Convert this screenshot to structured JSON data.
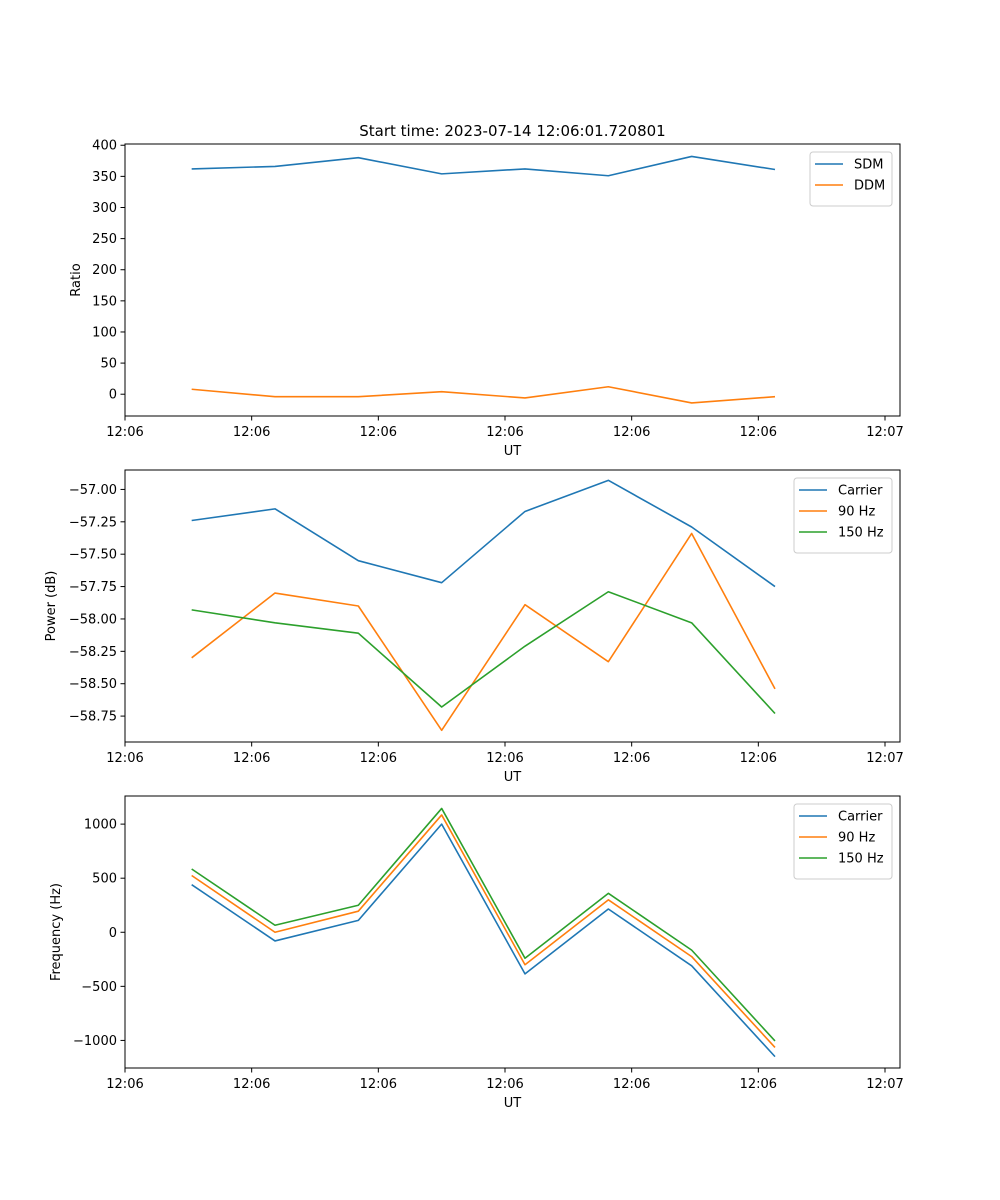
{
  "figure_title": "Start time: 2023-07-14 12:06:01.720801",
  "chart_data": [
    {
      "type": "line",
      "title": "Start time: 2023-07-14 12:06:01.720801",
      "xlabel": "UT",
      "ylabel": "Ratio",
      "x": [
        1,
        2,
        3,
        4,
        5,
        6,
        7,
        8
      ],
      "xlim": [
        0.2,
        9.5
      ],
      "x_ticks": [
        0.2,
        1.72,
        3.24,
        4.76,
        6.28,
        7.8,
        9.32
      ],
      "x_tick_labels": [
        "12:06",
        "12:06",
        "12:06",
        "12:06",
        "12:06",
        "12:06",
        "12:07"
      ],
      "ylim": [
        -35,
        402
      ],
      "y_ticks": [
        0,
        50,
        100,
        150,
        200,
        250,
        300,
        350,
        400
      ],
      "y_tick_labels": [
        "0",
        "50",
        "100",
        "150",
        "200",
        "250",
        "300",
        "350",
        "400"
      ],
      "legend_position": "upper-right",
      "series": [
        {
          "name": "SDM",
          "color": "#1f77b4",
          "values": [
            362,
            366,
            380,
            354,
            362,
            351,
            382,
            361
          ]
        },
        {
          "name": "DDM",
          "color": "#ff7f0e",
          "values": [
            8,
            -4,
            -4,
            4,
            -6,
            12,
            -14,
            -4
          ]
        }
      ]
    },
    {
      "type": "line",
      "title": "",
      "xlabel": "UT",
      "ylabel": "Power (dB)",
      "x": [
        1,
        2,
        3,
        4,
        5,
        6,
        7,
        8
      ],
      "xlim": [
        0.2,
        9.5
      ],
      "x_ticks": [
        0.2,
        1.72,
        3.24,
        4.76,
        6.28,
        7.8,
        9.32
      ],
      "x_tick_labels": [
        "12:06",
        "12:06",
        "12:06",
        "12:06",
        "12:06",
        "12:06",
        "12:07"
      ],
      "ylim": [
        -58.95,
        -56.85
      ],
      "y_ticks": [
        -58.75,
        -58.5,
        -58.25,
        -58.0,
        -57.75,
        -57.5,
        -57.25,
        -57.0
      ],
      "y_tick_labels": [
        "−58.75",
        "−58.50",
        "−58.25",
        "−58.00",
        "−57.75",
        "−57.50",
        "−57.25",
        "−57.00"
      ],
      "legend_position": "upper-right",
      "series": [
        {
          "name": "Carrier",
          "color": "#1f77b4",
          "values": [
            -57.24,
            -57.15,
            -57.55,
            -57.72,
            -57.17,
            -56.93,
            -57.29,
            -57.75
          ]
        },
        {
          "name": "90 Hz",
          "color": "#ff7f0e",
          "values": [
            -58.3,
            -57.8,
            -57.9,
            -58.86,
            -57.89,
            -58.33,
            -57.34,
            -58.54
          ]
        },
        {
          "name": "150 Hz",
          "color": "#2ca02c",
          "values": [
            -57.93,
            -58.03,
            -58.11,
            -58.68,
            -58.21,
            -57.79,
            -58.03,
            -58.73
          ]
        }
      ]
    },
    {
      "type": "line",
      "title": "",
      "xlabel": "UT",
      "ylabel": "Frequency (Hz)",
      "x": [
        1,
        2,
        3,
        4,
        5,
        6,
        7,
        8
      ],
      "xlim": [
        0.2,
        9.5
      ],
      "x_ticks": [
        0.2,
        1.72,
        3.24,
        4.76,
        6.28,
        7.8,
        9.32
      ],
      "x_tick_labels": [
        "12:06",
        "12:06",
        "12:06",
        "12:06",
        "12:06",
        "12:06",
        "12:07"
      ],
      "ylim": [
        -1255,
        1260
      ],
      "y_ticks": [
        -1000,
        -500,
        0,
        500,
        1000
      ],
      "y_tick_labels": [
        "−1000",
        "−500",
        "0",
        "500",
        "1000"
      ],
      "legend_position": "upper-right",
      "series": [
        {
          "name": "Carrier",
          "color": "#1f77b4",
          "values": [
            440,
            -80,
            110,
            1000,
            -385,
            215,
            -310,
            -1150
          ]
        },
        {
          "name": "90 Hz",
          "color": "#ff7f0e",
          "values": [
            525,
            0,
            195,
            1085,
            -300,
            300,
            -225,
            -1065
          ]
        },
        {
          "name": "150 Hz",
          "color": "#2ca02c",
          "values": [
            585,
            65,
            250,
            1145,
            -240,
            360,
            -165,
            -1005
          ]
        }
      ]
    }
  ]
}
